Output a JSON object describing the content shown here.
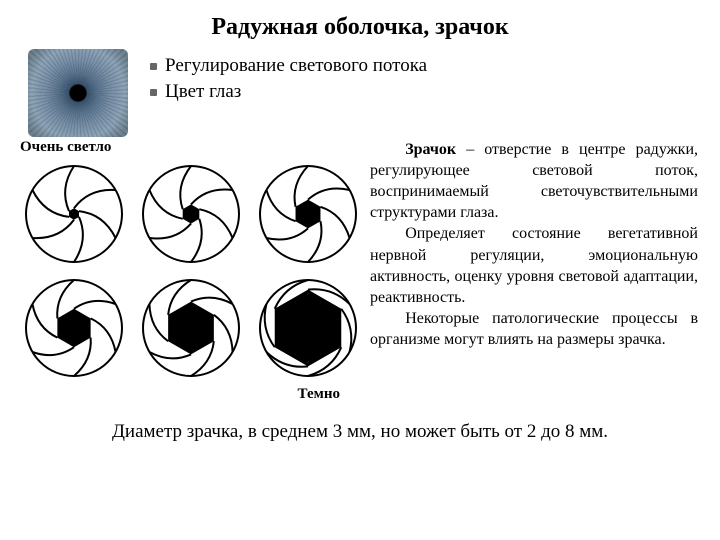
{
  "title": {
    "text": "Радужная оболочка, зрачок",
    "fontsize": 24
  },
  "bullets": {
    "item1": "Регулирование светового потока",
    "item2": "Цвет глаз",
    "fontsize": 19
  },
  "labels": {
    "light": "Очень светло",
    "dark": "Темно",
    "fontsize": 15
  },
  "paragraph": {
    "lead_bold": "Зрачок",
    "p1": " – отверстие в центре радужки, регулирующее световой поток, воспринимаемый светочувствительными структурами глаза.",
    "p2": "Определяет состояние вегетативной нервной регуляции, эмоциональную активность, оценку уровня световой адаптации, реактивность.",
    "p3": "Некоторые патологические процессы в организме могут влиять на размеры зрачка.",
    "fontsize": 16
  },
  "footer": {
    "text": "Диаметр зрачка, в среднем 3 мм, но может быть от 2 до 8 мм.",
    "fontsize": 19
  },
  "apertures": {
    "type": "infographic",
    "stroke": "#000000",
    "fill": "#000000",
    "background": "#ffffff",
    "circle_radius": 48,
    "stroke_width": 2,
    "blades": 6,
    "opening_ratios": [
      0.12,
      0.2,
      0.3,
      0.4,
      0.55,
      0.8
    ]
  },
  "iris_image": {
    "colors": [
      "#000000",
      "#3a5570",
      "#5a7590",
      "#7890a8",
      "#8ea4b8",
      "#6c808f"
    ]
  }
}
